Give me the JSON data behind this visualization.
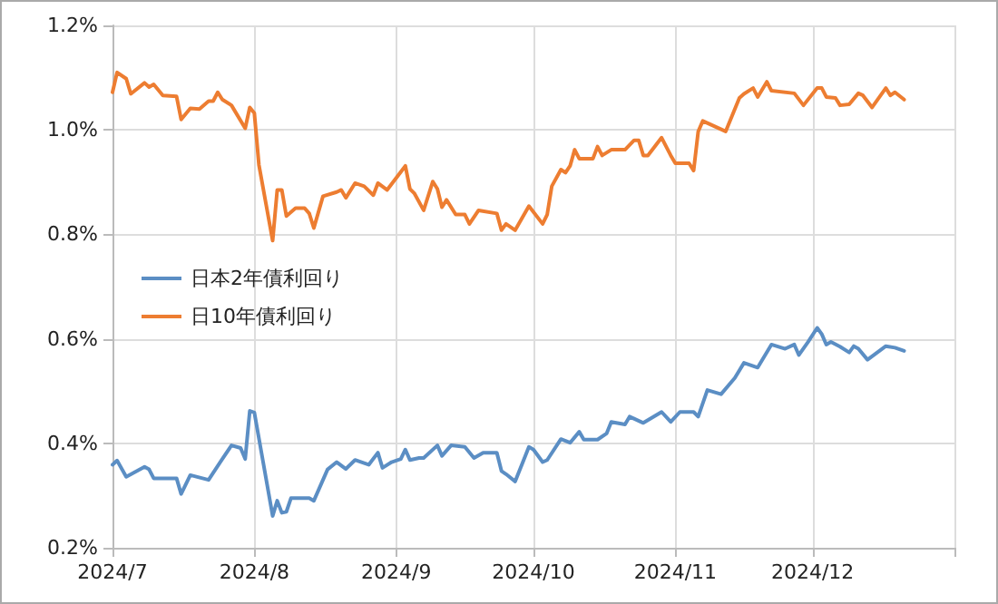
{
  "chart_data": {
    "type": "line",
    "ylim": [
      0.2,
      1.2
    ],
    "yticks": [
      {
        "value": 0.2,
        "label": "0.2%"
      },
      {
        "value": 0.4,
        "label": "0.4%"
      },
      {
        "value": 0.6,
        "label": "0.6%"
      },
      {
        "value": 0.8,
        "label": "0.8%"
      },
      {
        "value": 1.0,
        "label": "1.0%"
      },
      {
        "value": 1.2,
        "label": "1.2%"
      }
    ],
    "xlim": [
      "2024-07-01",
      "2025-01-01"
    ],
    "xticks": [
      {
        "value": "2024-07-01",
        "label": "2024/7"
      },
      {
        "value": "2024-08-01",
        "label": "2024/8"
      },
      {
        "value": "2024-09-01",
        "label": "2024/9"
      },
      {
        "value": "2024-10-01",
        "label": "2024/10"
      },
      {
        "value": "2024-11-01",
        "label": "2024/11"
      },
      {
        "value": "2024-12-01",
        "label": "2024/12"
      },
      {
        "value": "2025-01-01",
        "label": null
      }
    ],
    "grid": true,
    "legend": "left",
    "marker": "none",
    "line_style": "solid",
    "series": [
      {
        "name": "日本2年債利回り",
        "color": "#5b8ec4",
        "x": [
          "2024-07-01",
          "2024-07-02",
          "2024-07-04",
          "2024-07-08",
          "2024-07-09",
          "2024-07-10",
          "2024-07-12",
          "2024-07-15",
          "2024-07-16",
          "2024-07-18",
          "2024-07-22",
          "2024-07-25",
          "2024-07-27",
          "2024-07-29",
          "2024-07-30",
          "2024-07-31",
          "2024-08-01",
          "2024-08-05",
          "2024-08-06",
          "2024-08-07",
          "2024-08-08",
          "2024-08-09",
          "2024-08-13",
          "2024-08-14",
          "2024-08-17",
          "2024-08-19",
          "2024-08-21",
          "2024-08-23",
          "2024-08-26",
          "2024-08-28",
          "2024-08-29",
          "2024-08-31",
          "2024-09-02",
          "2024-09-03",
          "2024-09-04",
          "2024-09-06",
          "2024-09-07",
          "2024-09-10",
          "2024-09-11",
          "2024-09-13",
          "2024-09-16",
          "2024-09-18",
          "2024-09-20",
          "2024-09-23",
          "2024-09-24",
          "2024-09-25",
          "2024-09-27",
          "2024-09-30",
          "2024-10-01",
          "2024-10-03",
          "2024-10-04",
          "2024-10-07",
          "2024-10-09",
          "2024-10-11",
          "2024-10-12",
          "2024-10-15",
          "2024-10-17",
          "2024-10-18",
          "2024-10-21",
          "2024-10-22",
          "2024-10-25",
          "2024-10-29",
          "2024-10-31",
          "2024-11-02",
          "2024-11-05",
          "2024-11-06",
          "2024-11-08",
          "2024-11-11",
          "2024-11-14",
          "2024-11-16",
          "2024-11-19",
          "2024-11-22",
          "2024-11-25",
          "2024-11-27",
          "2024-11-28",
          "2024-11-30",
          "2024-12-02",
          "2024-12-03",
          "2024-12-04",
          "2024-12-05",
          "2024-12-07",
          "2024-12-09",
          "2024-12-10",
          "2024-12-11",
          "2024-12-13",
          "2024-12-17",
          "2024-12-19",
          "2024-12-21"
        ],
        "values": [
          0.359,
          0.367,
          0.336,
          0.355,
          0.35,
          0.333,
          0.333,
          0.333,
          0.303,
          0.339,
          0.33,
          0.37,
          0.396,
          0.391,
          0.37,
          0.462,
          0.459,
          0.261,
          0.29,
          0.267,
          0.269,
          0.295,
          0.295,
          0.29,
          0.35,
          0.364,
          0.351,
          0.368,
          0.359,
          0.382,
          0.353,
          0.364,
          0.37,
          0.388,
          0.368,
          0.372,
          0.372,
          0.396,
          0.376,
          0.396,
          0.393,
          0.372,
          0.382,
          0.382,
          0.347,
          0.341,
          0.327,
          0.393,
          0.388,
          0.364,
          0.368,
          0.408,
          0.401,
          0.422,
          0.407,
          0.407,
          0.419,
          0.441,
          0.436,
          0.451,
          0.439,
          0.46,
          0.441,
          0.46,
          0.46,
          0.451,
          0.502,
          0.494,
          0.525,
          0.554,
          0.545,
          0.589,
          0.581,
          0.589,
          0.569,
          0.594,
          0.621,
          0.609,
          0.589,
          0.594,
          0.585,
          0.574,
          0.586,
          0.581,
          0.56,
          0.586,
          0.583,
          0.577
        ]
      },
      {
        "name": "日10年債利回り",
        "color": "#ed7d31",
        "x": [
          "2024-07-01",
          "2024-07-02",
          "2024-07-04",
          "2024-07-05",
          "2024-07-08",
          "2024-07-09",
          "2024-07-10",
          "2024-07-12",
          "2024-07-15",
          "2024-07-16",
          "2024-07-18",
          "2024-07-20",
          "2024-07-22",
          "2024-07-23",
          "2024-07-24",
          "2024-07-25",
          "2024-07-27",
          "2024-07-30",
          "2024-07-31",
          "2024-08-01",
          "2024-08-02",
          "2024-08-05",
          "2024-08-06",
          "2024-08-07",
          "2024-08-08",
          "2024-08-10",
          "2024-08-12",
          "2024-08-13",
          "2024-08-14",
          "2024-08-16",
          "2024-08-19",
          "2024-08-20",
          "2024-08-21",
          "2024-08-23",
          "2024-08-25",
          "2024-08-27",
          "2024-08-28",
          "2024-08-30",
          "2024-09-03",
          "2024-09-04",
          "2024-09-05",
          "2024-09-07",
          "2024-09-09",
          "2024-09-10",
          "2024-09-11",
          "2024-09-12",
          "2024-09-14",
          "2024-09-16",
          "2024-09-17",
          "2024-09-19",
          "2024-09-23",
          "2024-09-24",
          "2024-09-25",
          "2024-09-27",
          "2024-09-30",
          "2024-10-03",
          "2024-10-04",
          "2024-10-05",
          "2024-10-07",
          "2024-10-08",
          "2024-10-09",
          "2024-10-10",
          "2024-10-11",
          "2024-10-14",
          "2024-10-15",
          "2024-10-16",
          "2024-10-18",
          "2024-10-21",
          "2024-10-23",
          "2024-10-24",
          "2024-10-25",
          "2024-10-26",
          "2024-10-29",
          "2024-10-31",
          "2024-11-01",
          "2024-11-04",
          "2024-11-05",
          "2024-11-06",
          "2024-11-07",
          "2024-11-12",
          "2024-11-15",
          "2024-11-16",
          "2024-11-18",
          "2024-11-19",
          "2024-11-21",
          "2024-11-22",
          "2024-11-27",
          "2024-11-29",
          "2024-12-02",
          "2024-12-03",
          "2024-12-04",
          "2024-12-06",
          "2024-12-07",
          "2024-12-09",
          "2024-12-11",
          "2024-12-12",
          "2024-12-14",
          "2024-12-17",
          "2024-12-18",
          "2024-12-19",
          "2024-12-21"
        ],
        "values": [
          1.072,
          1.11,
          1.098,
          1.069,
          1.09,
          1.082,
          1.087,
          1.066,
          1.064,
          1.02,
          1.041,
          1.04,
          1.055,
          1.055,
          1.072,
          1.058,
          1.047,
          1.003,
          1.043,
          1.032,
          0.933,
          0.788,
          0.885,
          0.885,
          0.835,
          0.85,
          0.85,
          0.84,
          0.812,
          0.873,
          0.881,
          0.885,
          0.87,
          0.898,
          0.892,
          0.875,
          0.898,
          0.885,
          0.931,
          0.887,
          0.878,
          0.846,
          0.901,
          0.887,
          0.852,
          0.866,
          0.838,
          0.838,
          0.82,
          0.846,
          0.84,
          0.808,
          0.82,
          0.808,
          0.854,
          0.82,
          0.838,
          0.892,
          0.924,
          0.918,
          0.931,
          0.962,
          0.945,
          0.945,
          0.968,
          0.951,
          0.962,
          0.962,
          0.98,
          0.98,
          0.951,
          0.951,
          0.985,
          0.951,
          0.936,
          0.936,
          0.922,
          0.997,
          1.017,
          0.997,
          1.061,
          1.069,
          1.08,
          1.063,
          1.092,
          1.075,
          1.07,
          1.047,
          1.08,
          1.08,
          1.063,
          1.061,
          1.047,
          1.049,
          1.07,
          1.066,
          1.043,
          1.08,
          1.066,
          1.072,
          1.058
        ]
      }
    ]
  }
}
